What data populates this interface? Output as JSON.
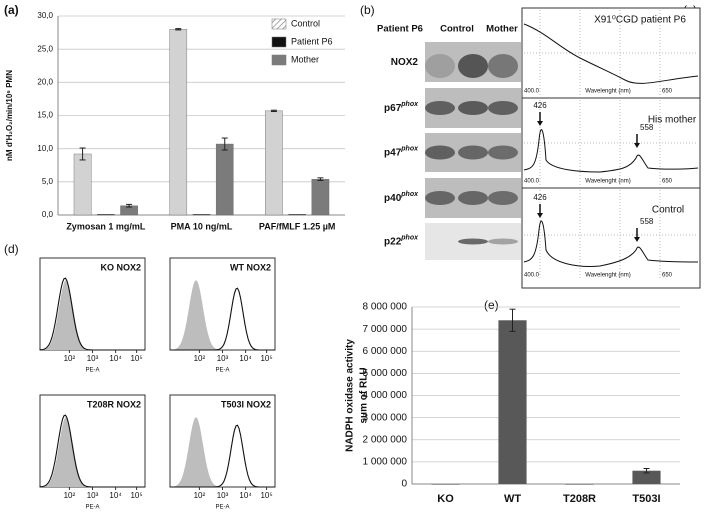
{
  "chart_data": [
    {
      "type": "bar",
      "ylabel": "nM d'H₂O₂/min/10⁶ PMN",
      "categories": [
        "Zymosan 1 mg/mL",
        "PMA 10 ng/mL",
        "PAF/fMLF 1.25 µM"
      ],
      "series": [
        {
          "name": "Control",
          "color": "#d2d2d2",
          "values": [
            9.2,
            28.0,
            15.7
          ],
          "errors": [
            0.9,
            0.1,
            0.1
          ]
        },
        {
          "name": "Patient P6",
          "color": "#111111",
          "values": [
            0.1,
            0.1,
            0.1
          ]
        },
        {
          "name": "Mother",
          "color": "#7b7b7b",
          "values": [
            1.4,
            10.7,
            5.4
          ],
          "errors": [
            0.2,
            0.9,
            0.2
          ]
        }
      ],
      "ylim": [
        0,
        30
      ],
      "yticks": [
        {
          "value": 0,
          "label": "0,0"
        },
        {
          "value": 5,
          "label": "5,0"
        },
        {
          "value": 10,
          "label": "10,0"
        },
        {
          "value": 15,
          "label": "15,0"
        },
        {
          "value": 20,
          "label": "20,0"
        },
        {
          "value": 25,
          "label": "25,0"
        },
        {
          "value": 30,
          "label": "30,0"
        }
      ],
      "grid": true,
      "legend": "upper right"
    },
    {
      "type": "bar",
      "ylabel": [
        "NADPH oxidase activity",
        "sum of RLU"
      ],
      "categories": [
        "KO",
        "WT",
        "T208R",
        "T503I"
      ],
      "values": [
        0,
        7400000,
        0,
        600000
      ],
      "errors": [
        0,
        500000,
        0,
        100000
      ],
      "color": "#585858",
      "ylim": [
        0,
        8000000
      ],
      "yticks": [
        0,
        {
          "value": 1000000,
          "label": "1 000 000"
        },
        {
          "value": 2000000,
          "label": "2 000 000"
        },
        {
          "value": 3000000,
          "label": "3 000 000"
        },
        {
          "value": 4000000,
          "label": "4 000 000"
        },
        {
          "value": 5000000,
          "label": "5 000 000"
        },
        {
          "value": 6000000,
          "label": "6 000 000"
        },
        {
          "value": 7000000,
          "label": "7 000 000"
        },
        {
          "value": 8000000,
          "label": "8 000 000"
        }
      ],
      "grid": true
    }
  ],
  "figure": {
    "panel_labels": [
      "(a)",
      "(b)",
      "(c)",
      "(d)",
      "(e)"
    ],
    "blot": {
      "lanes": [
        "Patient P6",
        "Control",
        "Mother"
      ],
      "proteins": [
        {
          "name": "NOX2"
        },
        {
          "name": "p67",
          "sup": "phox"
        },
        {
          "name": "p47",
          "sup": "phox"
        },
        {
          "name": "p40",
          "sup": "phox"
        },
        {
          "name": "p22",
          "sup": "phox"
        }
      ]
    },
    "spectra": [
      {
        "title": "X91⁰CGD patient P6",
        "x_start": "400.0",
        "x_label": "Wavelenght (nm)",
        "x_end": "650"
      },
      {
        "title": "His mother",
        "peaks": [
          "426",
          "558"
        ],
        "x_start": "400.0",
        "x_label": "Wavelenght (nm)",
        "x_end": "650"
      },
      {
        "title": "Control",
        "peaks": [
          "426",
          "558"
        ],
        "x_start": "400.0",
        "x_label": "Wavelenght (nm)",
        "x_end": "650"
      }
    ],
    "flow": {
      "panels": [
        "KO NOX2",
        "WT NOX2",
        "T208R NOX2",
        "T503I NOX2"
      ],
      "xticks": [
        "10²",
        "10³",
        "10⁴",
        "10⁵"
      ],
      "xlabel": "PE-A"
    }
  }
}
